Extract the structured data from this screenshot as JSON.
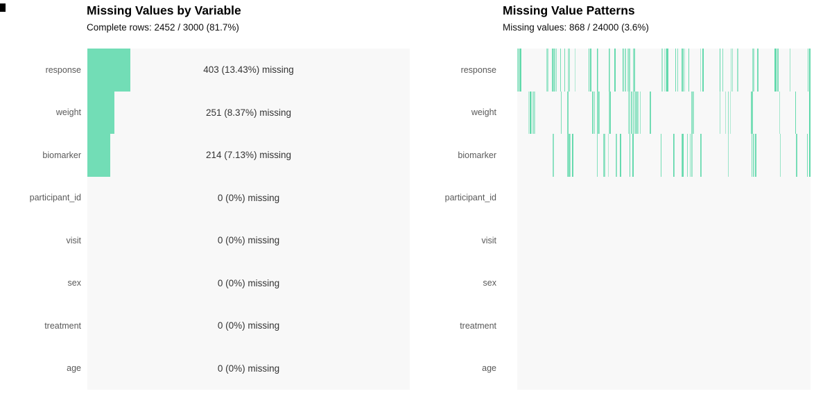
{
  "figure": {
    "background": "#ffffff",
    "plot_background": "#f8f8f8",
    "accent_color": "#72ddb6",
    "corner_artifact_color": "#000000"
  },
  "left_panel": {
    "title": "Missing Values by Variable",
    "subtitle": "Complete rows: 2452 / 3000 (81.7%)"
  },
  "right_panel": {
    "title": "Missing Value Patterns",
    "subtitle": "Missing values: 868 / 24000 (3.6%)"
  },
  "chart_data": [
    {
      "type": "bar",
      "orientation": "horizontal",
      "title": "Missing Values by Variable",
      "subtitle": "Complete rows: 2452 / 3000 (81.7%)",
      "categories": [
        "response",
        "weight",
        "biomarker",
        "participant_id",
        "visit",
        "sex",
        "treatment",
        "age"
      ],
      "values_pct_missing": [
        13.43,
        8.37,
        7.13,
        0,
        0,
        0,
        0,
        0
      ],
      "values_count_missing": [
        403,
        251,
        214,
        0,
        0,
        0,
        0,
        0
      ],
      "bar_labels": [
        "403 (13.43%) missing",
        "251 (8.37%) missing",
        "214 (7.13%) missing",
        "0 (0%) missing",
        "0 (0%) missing",
        "0 (0%) missing",
        "0 (0%) missing",
        "0 (0%) missing"
      ],
      "xlim_pct": [
        0,
        100
      ],
      "complete_rows": 2452,
      "total_rows": 3000,
      "complete_pct": 81.7,
      "bar_color": "#72ddb6",
      "plot_bg": "#f8f8f8",
      "label_color": "#595959",
      "value_color": "#333333",
      "grid": false,
      "legend": false
    },
    {
      "type": "heatmap",
      "title": "Missing Value Patterns",
      "subtitle": "Missing values: 868 / 24000 (3.6%)",
      "categories": [
        "response",
        "weight",
        "biomarker",
        "participant_id",
        "visit",
        "sex",
        "treatment",
        "age"
      ],
      "missing_counts": [
        403,
        251,
        214,
        0,
        0,
        0,
        0,
        0
      ],
      "total_missing": 868,
      "total_cells": 24000,
      "missing_pct": 3.6,
      "n_data_rows": 3000,
      "mark_color": "#5ed8aa",
      "plot_bg": "#f8f8f8",
      "render_marks": [
        58,
        36,
        31,
        0,
        0,
        0,
        0,
        0
      ],
      "seeds": [
        101,
        202,
        303,
        0,
        0,
        0,
        0,
        0
      ],
      "grid": false,
      "legend": false
    }
  ]
}
